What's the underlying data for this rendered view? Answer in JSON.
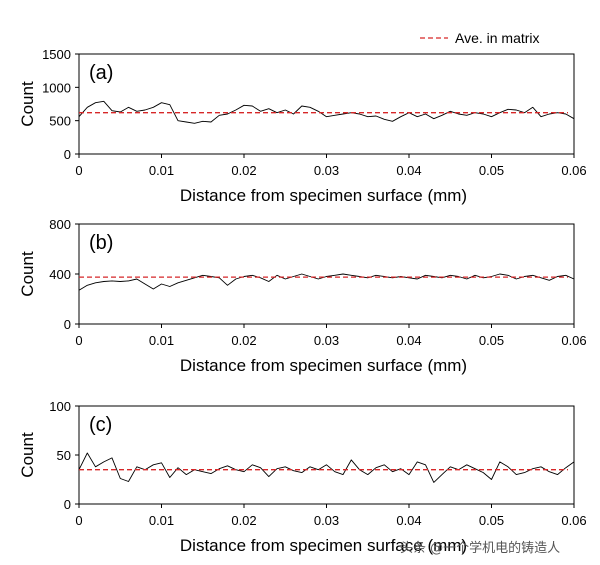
{
  "legend": {
    "label": "Ave. in matrix",
    "color": "#d62728"
  },
  "watermark": "头条 @一个学机电的铸造人",
  "chart_data": [
    {
      "type": "line",
      "panel_label": "(a)",
      "xlabel": "Distance from specimen surface (mm)",
      "ylabel": "Count",
      "xlim": [
        0,
        0.06
      ],
      "ylim": [
        0,
        1500
      ],
      "xticks": [
        0,
        0.01,
        0.02,
        0.03,
        0.04,
        0.05,
        0.06
      ],
      "xtick_labels": [
        "0",
        "0.01",
        "0.02",
        "0.03",
        "0.04",
        "0.05",
        "0.06"
      ],
      "yticks": [
        0,
        500,
        1000,
        1500
      ],
      "ytick_labels": [
        "0",
        "500",
        "1000",
        "1500"
      ],
      "average": 620,
      "series": [
        {
          "name": "Count",
          "x": [
            0,
            0.001,
            0.002,
            0.003,
            0.004,
            0.005,
            0.006,
            0.007,
            0.008,
            0.009,
            0.01,
            0.011,
            0.012,
            0.013,
            0.014,
            0.015,
            0.016,
            0.017,
            0.018,
            0.019,
            0.02,
            0.021,
            0.022,
            0.023,
            0.024,
            0.025,
            0.026,
            0.027,
            0.028,
            0.029,
            0.03,
            0.031,
            0.032,
            0.033,
            0.034,
            0.035,
            0.036,
            0.037,
            0.038,
            0.039,
            0.04,
            0.041,
            0.042,
            0.043,
            0.044,
            0.045,
            0.046,
            0.047,
            0.048,
            0.049,
            0.05,
            0.051,
            0.052,
            0.053,
            0.054,
            0.055,
            0.056,
            0.057,
            0.058,
            0.059,
            0.06
          ],
          "y": [
            560,
            700,
            770,
            790,
            650,
            630,
            700,
            640,
            660,
            700,
            770,
            740,
            500,
            480,
            460,
            490,
            480,
            580,
            600,
            660,
            730,
            720,
            640,
            680,
            620,
            660,
            600,
            720,
            700,
            640,
            560,
            580,
            600,
            620,
            600,
            560,
            570,
            520,
            490,
            560,
            620,
            560,
            600,
            530,
            580,
            640,
            600,
            580,
            620,
            600,
            560,
            620,
            670,
            660,
            620,
            700,
            560,
            600,
            620,
            600,
            530
          ]
        }
      ]
    },
    {
      "type": "line",
      "panel_label": "(b)",
      "xlabel": "Distance from specimen surface (mm)",
      "ylabel": "Count",
      "xlim": [
        0,
        0.06
      ],
      "ylim": [
        0,
        800
      ],
      "xticks": [
        0,
        0.01,
        0.02,
        0.03,
        0.04,
        0.05,
        0.06
      ],
      "xtick_labels": [
        "0",
        "0.01",
        "0.02",
        "0.03",
        "0.04",
        "0.05",
        "0.06"
      ],
      "yticks": [
        0,
        400,
        800
      ],
      "ytick_labels": [
        "0",
        "400",
        "800"
      ],
      "average": 375,
      "series": [
        {
          "name": "Count",
          "x": [
            0,
            0.001,
            0.002,
            0.003,
            0.004,
            0.005,
            0.006,
            0.007,
            0.008,
            0.009,
            0.01,
            0.011,
            0.012,
            0.013,
            0.014,
            0.015,
            0.016,
            0.017,
            0.018,
            0.019,
            0.02,
            0.021,
            0.022,
            0.023,
            0.024,
            0.025,
            0.026,
            0.027,
            0.028,
            0.029,
            0.03,
            0.031,
            0.032,
            0.033,
            0.034,
            0.035,
            0.036,
            0.037,
            0.038,
            0.039,
            0.04,
            0.041,
            0.042,
            0.043,
            0.044,
            0.045,
            0.046,
            0.047,
            0.048,
            0.049,
            0.05,
            0.051,
            0.052,
            0.053,
            0.054,
            0.055,
            0.056,
            0.057,
            0.058,
            0.059,
            0.06
          ],
          "y": [
            270,
            310,
            330,
            340,
            345,
            340,
            345,
            360,
            320,
            280,
            320,
            300,
            330,
            350,
            370,
            390,
            380,
            370,
            310,
            360,
            380,
            390,
            370,
            340,
            390,
            360,
            380,
            400,
            380,
            360,
            380,
            390,
            400,
            390,
            380,
            370,
            390,
            380,
            370,
            380,
            370,
            360,
            390,
            380,
            370,
            390,
            380,
            360,
            390,
            370,
            380,
            400,
            390,
            360,
            380,
            390,
            370,
            350,
            380,
            390,
            360
          ]
        }
      ]
    },
    {
      "type": "line",
      "panel_label": "(c)",
      "xlabel": "Distance from specimen surface (mm)",
      "ylabel": "Count",
      "xlim": [
        0,
        0.06
      ],
      "ylim": [
        0,
        100
      ],
      "xticks": [
        0,
        0.01,
        0.02,
        0.03,
        0.04,
        0.05,
        0.06
      ],
      "xtick_labels": [
        "0",
        "0.01",
        "0.02",
        "0.03",
        "0.04",
        "0.05",
        "0.06"
      ],
      "yticks": [
        0,
        50,
        100
      ],
      "ytick_labels": [
        "0",
        "50",
        "100"
      ],
      "average": 35,
      "series": [
        {
          "name": "Count",
          "x": [
            0,
            0.001,
            0.002,
            0.003,
            0.004,
            0.005,
            0.006,
            0.007,
            0.008,
            0.009,
            0.01,
            0.011,
            0.012,
            0.013,
            0.014,
            0.015,
            0.016,
            0.017,
            0.018,
            0.019,
            0.02,
            0.021,
            0.022,
            0.023,
            0.024,
            0.025,
            0.026,
            0.027,
            0.028,
            0.029,
            0.03,
            0.031,
            0.032,
            0.033,
            0.034,
            0.035,
            0.036,
            0.037,
            0.038,
            0.039,
            0.04,
            0.041,
            0.042,
            0.043,
            0.044,
            0.045,
            0.046,
            0.047,
            0.048,
            0.049,
            0.05,
            0.051,
            0.052,
            0.053,
            0.054,
            0.055,
            0.056,
            0.057,
            0.058,
            0.059,
            0.06
          ],
          "y": [
            35,
            52,
            38,
            43,
            47,
            26,
            23,
            38,
            35,
            40,
            42,
            27,
            37,
            30,
            35,
            33,
            31,
            36,
            39,
            35,
            33,
            40,
            37,
            28,
            36,
            38,
            34,
            32,
            38,
            35,
            40,
            33,
            30,
            45,
            35,
            30,
            37,
            40,
            33,
            36,
            30,
            43,
            40,
            22,
            30,
            38,
            35,
            40,
            36,
            32,
            25,
            43,
            38,
            30,
            32,
            36,
            38,
            33,
            30,
            37,
            43
          ]
        }
      ]
    }
  ]
}
